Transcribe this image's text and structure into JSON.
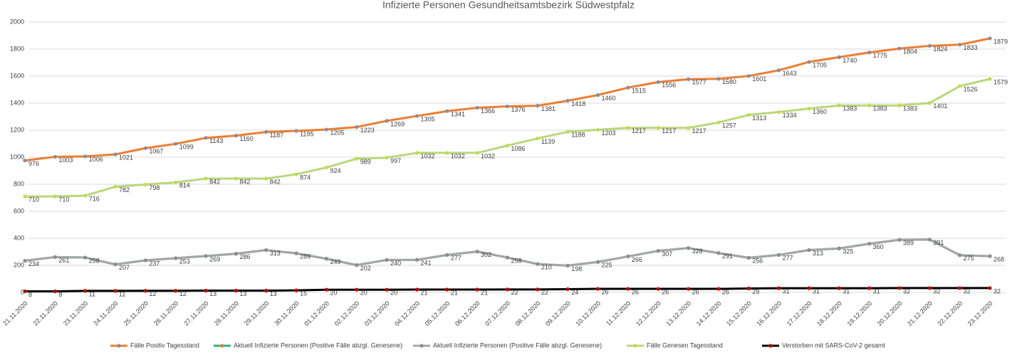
{
  "chart_data": {
    "type": "line",
    "title": "Infizierte Personen Gesundheitsamtsbezirk Südwestpfalz",
    "categories": [
      "21.11.2020",
      "22.11.2020",
      "23.11.2020",
      "24.11.2020",
      "25.11.2020",
      "26.11.2020",
      "27.11.2020",
      "28.11.2020",
      "29.11.2020",
      "30.11.2020",
      "01.12.2020",
      "02.12.2020",
      "03.12.2020",
      "04.12.2020",
      "05.12.2020",
      "06.12.2020",
      "07.12.2020",
      "08.12.2020",
      "09.12.2020",
      "10.12.2020",
      "11.12.2020",
      "12.12.2020",
      "13.12.2020",
      "14.12.2020",
      "15.12.2020",
      "16.12.2020",
      "17.12.2020",
      "18.12.2020",
      "19.12.2020",
      "20.12.2020",
      "21.12.2020",
      "22.12.2020",
      "23.12.2020"
    ],
    "series": [
      {
        "name": "Fälle Positiv Tagesstand",
        "color": "#ed7d31",
        "marker_color": "#8c8c9c",
        "show_labels": true,
        "values": [
          976,
          1003,
          1006,
          1021,
          1067,
          1099,
          1143,
          1160,
          1187,
          1195,
          1205,
          1223,
          1269,
          1305,
          1341,
          1366,
          1376,
          1381,
          1418,
          1460,
          1515,
          1556,
          1577,
          1580,
          1601,
          1643,
          1705,
          1740,
          1775,
          1804,
          1824,
          1833,
          1879
        ]
      },
      {
        "name": "Aktuell Infizierte Personen (Positive Fälle abzgl. Genesene)",
        "color": "#1fb584",
        "marker_color": "#ed7d31",
        "show_labels": false,
        "values": [
          234,
          261,
          258,
          207,
          237,
          253,
          269,
          286,
          313,
          289,
          249,
          202,
          240,
          241,
          277,
          302,
          258,
          210,
          198,
          225,
          266,
          307,
          328,
          291,
          256,
          277,
          313,
          325,
          360,
          389,
          391,
          275,
          268
        ]
      },
      {
        "name": "Aktuell Infizierte Personen (Positive Fälle abzgl. Genesene)",
        "color": "#a5a5a5",
        "marker_color": "#8c8c9c",
        "show_labels": true,
        "values": [
          234,
          261,
          258,
          207,
          237,
          253,
          269,
          286,
          313,
          289,
          249,
          202,
          240,
          241,
          277,
          302,
          258,
          210,
          198,
          225,
          266,
          307,
          328,
          291,
          256,
          277,
          313,
          325,
          360,
          389,
          391,
          275,
          268
        ]
      },
      {
        "name": "Fälle Genesen Tagesstand",
        "color": "#b9d77a",
        "marker_color": "#c9d84a",
        "show_labels": true,
        "values": [
          710,
          710,
          716,
          782,
          798,
          814,
          842,
          842,
          842,
          874,
          924,
          989,
          997,
          1032,
          1032,
          1032,
          1086,
          1139,
          1188,
          1203,
          1217,
          1217,
          1217,
          1257,
          1313,
          1334,
          1360,
          1383,
          1383,
          1383,
          1401,
          1526,
          1579
        ]
      },
      {
        "name": "Verstorben mit SARS-CoV-2 gesamt",
        "color": "#000000",
        "marker_color": "#c00000",
        "show_labels": true,
        "values": [
          8,
          8,
          11,
          11,
          12,
          12,
          13,
          13,
          13,
          15,
          20,
          20,
          20,
          21,
          21,
          21,
          22,
          22,
          24,
          26,
          26,
          26,
          26,
          26,
          29,
          31,
          31,
          31,
          31,
          32,
          32,
          32,
          32
        ]
      }
    ],
    "ylim": [
      0,
      2000
    ],
    "yticks": [
      0,
      200,
      400,
      600,
      800,
      1000,
      1200,
      1400,
      1600,
      1800,
      2000
    ],
    "grid": true,
    "legend": "bottom"
  }
}
